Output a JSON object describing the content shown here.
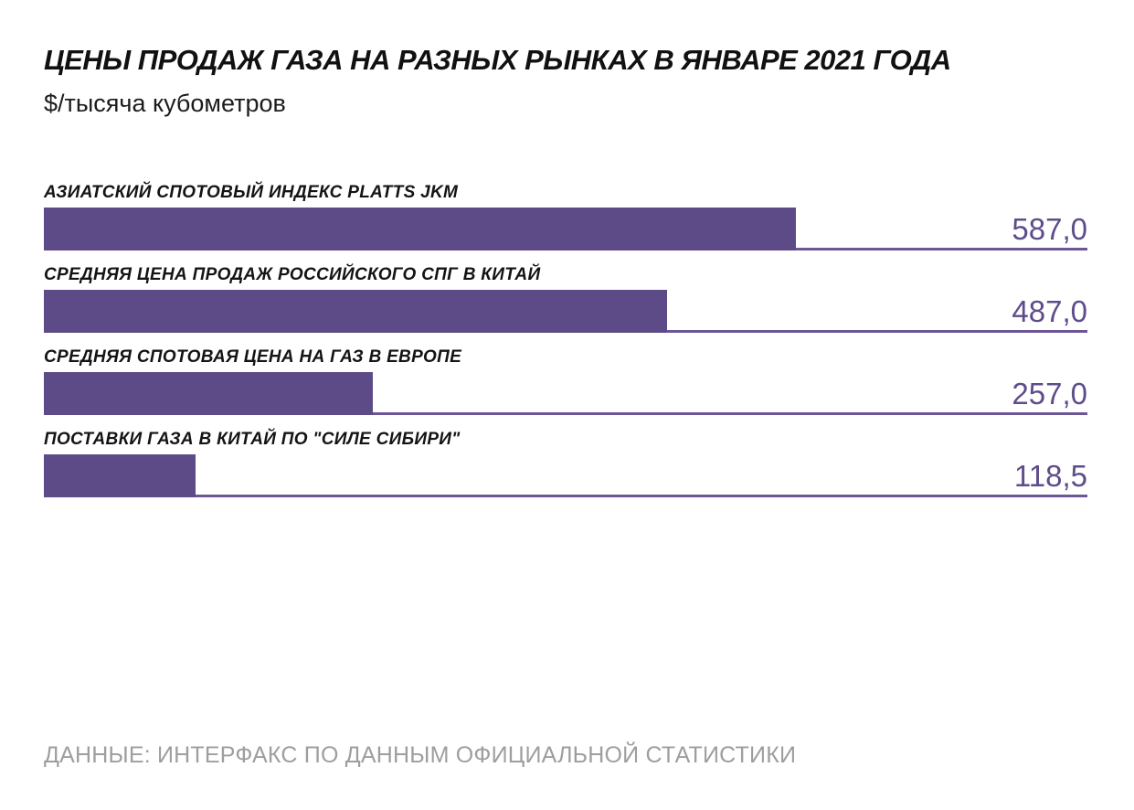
{
  "header": {
    "title": "ЦЕНЫ ПРОДАЖ ГАЗА НА РАЗНЫХ РЫНКАХ В ЯНВАРЕ 2021 ГОДА",
    "subtitle": "$/тысяча кубометров"
  },
  "chart_data": {
    "type": "bar",
    "orientation": "horizontal",
    "title": "ЦЕНЫ ПРОДАЖ ГАЗА НА РАЗНЫХ РЫНКАХ В ЯНВАРЕ 2021 ГОДА",
    "unit_label": "$/тысяча кубометров",
    "categories": [
      "АЗИАТСКИЙ СПОТОВЫЙ ИНДЕКС PLATTS JKM",
      "СРЕДНЯЯ ЦЕНА ПРОДАЖ РОССИЙСКОГО СПГ В КИТАЙ",
      "СРЕДНЯЯ СПОТОВАЯ ЦЕНА НА ГАЗ В ЕВРОПЕ",
      "ПОСТАВКИ ГАЗА В КИТАЙ ПО \"СИЛЕ СИБИРИ\""
    ],
    "values": [
      587.0,
      487.0,
      257.0,
      118.5
    ],
    "value_labels": [
      "587,0",
      "487,0",
      "257,0",
      "118,5"
    ],
    "xlim": [
      0,
      815
    ],
    "grid": false,
    "legend": false,
    "bar_color": "#5c4b86",
    "baseline_color": "#6c5696",
    "value_color": "#5e4c8b"
  },
  "footer": {
    "source": "ДАННЫЕ: ИНТЕРФАКС ПО ДАННЫМ ОФИЦИАЛЬНОЙ СТАТИСТИКИ"
  }
}
